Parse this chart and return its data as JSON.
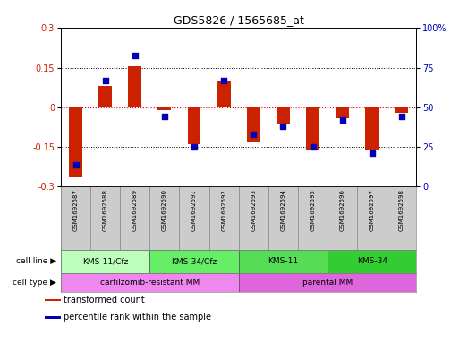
{
  "title": "GDS5826 / 1565685_at",
  "samples": [
    "GSM1692587",
    "GSM1692588",
    "GSM1692589",
    "GSM1692590",
    "GSM1692591",
    "GSM1692592",
    "GSM1692593",
    "GSM1692594",
    "GSM1692595",
    "GSM1692596",
    "GSM1692597",
    "GSM1692598"
  ],
  "transformed_count": [
    -0.265,
    0.08,
    0.155,
    -0.01,
    -0.14,
    0.1,
    -0.13,
    -0.06,
    -0.16,
    -0.04,
    -0.16,
    -0.02
  ],
  "percentile_rank": [
    14,
    67,
    83,
    44,
    25,
    67,
    33,
    38,
    25,
    42,
    21,
    44
  ],
  "ylim_left": [
    -0.3,
    0.3
  ],
  "ylim_right": [
    0,
    100
  ],
  "yticks_left": [
    -0.3,
    -0.15,
    0,
    0.15,
    0.3
  ],
  "yticks_right": [
    0,
    25,
    50,
    75,
    100
  ],
  "hlines_dotted": [
    -0.15,
    0.15
  ],
  "hline_zero_color": "#dd0000",
  "bar_color": "#cc2200",
  "dot_color": "#0000bb",
  "cell_line_groups": [
    {
      "label": "KMS-11/Cfz",
      "start": 0,
      "end": 3,
      "color": "#bbffbb"
    },
    {
      "label": "KMS-34/Cfz",
      "start": 3,
      "end": 6,
      "color": "#66ee66"
    },
    {
      "label": "KMS-11",
      "start": 6,
      "end": 9,
      "color": "#55dd55"
    },
    {
      "label": "KMS-34",
      "start": 9,
      "end": 12,
      "color": "#33cc33"
    }
  ],
  "cell_type_groups": [
    {
      "label": "carfilzomib-resistant MM",
      "start": 0,
      "end": 6,
      "color": "#ee88ee"
    },
    {
      "label": "parental MM",
      "start": 6,
      "end": 12,
      "color": "#dd66dd"
    }
  ],
  "legend_items": [
    {
      "label": "transformed count",
      "color": "#cc2200"
    },
    {
      "label": "percentile rank within the sample",
      "color": "#0000bb"
    }
  ],
  "cell_line_label": "cell line",
  "cell_type_label": "cell type",
  "background_color": "#ffffff",
  "sample_box_color": "#cccccc",
  "sample_box_edge": "#888888"
}
